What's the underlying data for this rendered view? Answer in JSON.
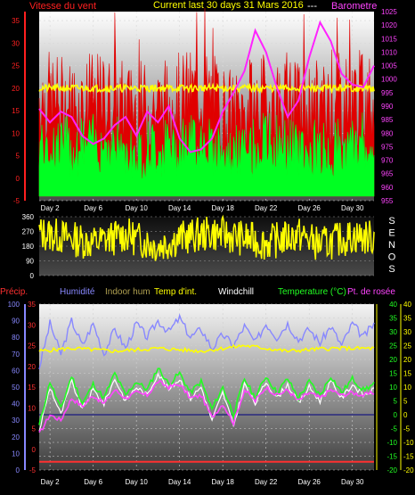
{
  "chart_data": [
    {
      "type": "line",
      "title": "Current last 30 days 31 Mars 2016",
      "left_label": "Vitesse du vent",
      "separator": "---",
      "right_label": "Barometre",
      "colors": {
        "wind_gust": "#e00000",
        "wind_avg": "#00ff22",
        "direction_avg": "#ffff00",
        "barometer": "#ff22ff"
      },
      "y_left_ticks": [
        35,
        30,
        25,
        20,
        15,
        10,
        5,
        0,
        -5
      ],
      "y_left_range": [
        -5,
        37
      ],
      "y_right_ticks": [
        1025,
        1020,
        1015,
        1010,
        1005,
        1000,
        995,
        990,
        985,
        980,
        975,
        970,
        965,
        960,
        955
      ],
      "y_right_range": [
        955,
        1025
      ],
      "x_ticks": [
        "Day 2",
        "Day 6",
        "Day 10",
        "Day 14",
        "Day 18",
        "Day 22",
        "Day 26",
        "Day 30"
      ],
      "x_range": [
        1,
        32
      ],
      "grid": true,
      "series": [
        {
          "key": "barometer",
          "axis": "right",
          "x": [
            1,
            2,
            3,
            4,
            5,
            6,
            7,
            8,
            9,
            10,
            11,
            12,
            13,
            14,
            15,
            16,
            17,
            18,
            19,
            20,
            21,
            22,
            23,
            24,
            25,
            26,
            27,
            28,
            29,
            30,
            31,
            32
          ],
          "y": [
            989,
            984,
            988,
            986,
            979,
            976,
            978,
            983,
            986,
            979,
            988,
            984,
            990,
            978,
            973,
            974,
            978,
            988,
            995,
            1003,
            1018,
            1010,
            997,
            986,
            992,
            1008,
            1021,
            1014,
            1002,
            998,
            997,
            1005
          ]
        },
        {
          "key": "wind_avg_level",
          "axis": "left",
          "x": [
            1,
            4,
            7,
            10,
            13,
            16,
            19,
            22,
            25,
            28,
            31,
            32
          ],
          "y": [
            8,
            7,
            8,
            6,
            7,
            9,
            5,
            8,
            7,
            6,
            8,
            8
          ]
        },
        {
          "key": "wind_gust_level",
          "axis": "left",
          "x": [
            1,
            4,
            7,
            10,
            13,
            16,
            19,
            22,
            25,
            28,
            31,
            32
          ],
          "y": [
            18,
            16,
            17,
            15,
            16,
            19,
            13,
            17,
            15,
            16,
            18,
            17
          ]
        },
        {
          "key": "direction_level",
          "axis": "left",
          "x": [
            1,
            32
          ],
          "y": [
            20,
            20
          ]
        }
      ]
    },
    {
      "type": "area",
      "side_label": "SENOS",
      "y_ticks": [
        360,
        270,
        180,
        90,
        0
      ],
      "y_range": [
        0,
        360
      ],
      "colors": {
        "direction": "#ffff00"
      },
      "series": [
        {
          "key": "wind_direction",
          "x": [
            1,
            3,
            6,
            9,
            12,
            14,
            17,
            19,
            22,
            25,
            27,
            30,
            32
          ],
          "y": [
            260,
            240,
            200,
            250,
            180,
            230,
            260,
            240,
            200,
            250,
            190,
            240,
            230
          ]
        }
      ]
    },
    {
      "type": "line",
      "legend": [
        "Précip.",
        "Humidité",
        "Indoor hum",
        "Temp d'int.",
        "Windchill",
        "Temperature (°C)",
        "Pt. de rosée"
      ],
      "legend_colors": [
        "#ff3030",
        "#8888ff",
        "#b0a050",
        "#ffff00",
        "#ffffff",
        "#22ff22",
        "#ff44ff"
      ],
      "y_hum_ticks": [
        100,
        90,
        80,
        70,
        60,
        50,
        40,
        30,
        20,
        10,
        0
      ],
      "y_precip_ticks": [
        35,
        30,
        25,
        20,
        15,
        10,
        5,
        0,
        -5
      ],
      "y_temp_ticks": [
        40,
        35,
        30,
        25,
        20,
        15,
        10,
        5,
        0,
        -5,
        -10,
        -15,
        -20
      ],
      "y_temp_range": [
        -20,
        40
      ],
      "x_ticks": [
        "Day 2",
        "Day 6",
        "Day 10",
        "Day 14",
        "Day 18",
        "Day 22",
        "Day 26",
        "Day 30"
      ],
      "x_range": [
        1,
        32
      ],
      "grid": true,
      "series": [
        {
          "key": "humidity",
          "axis": "temp",
          "x": [
            1,
            2,
            3,
            4,
            5,
            6,
            7,
            8,
            9,
            10,
            11,
            12,
            13,
            14,
            15,
            16,
            17,
            18,
            19,
            20,
            21,
            22,
            23,
            24,
            25,
            26,
            27,
            28,
            29,
            30,
            31,
            32
          ],
          "y": [
            17,
            33,
            22,
            34,
            25,
            33,
            22,
            31,
            24,
            33,
            28,
            34,
            30,
            35,
            28,
            31,
            24,
            29,
            25,
            32,
            26,
            33,
            28,
            33,
            27,
            31,
            26,
            32,
            25,
            33,
            28,
            33
          ]
        },
        {
          "key": "indoor_temp",
          "axis": "temp",
          "x": [
            1,
            4,
            8,
            12,
            16,
            20,
            24,
            28,
            32
          ],
          "y": [
            23,
            24,
            23,
            24,
            23,
            25,
            23,
            24,
            24
          ]
        },
        {
          "key": "temperature",
          "axis": "temp",
          "x": [
            1,
            2,
            3,
            4,
            5,
            6,
            7,
            8,
            9,
            10,
            11,
            12,
            13,
            14,
            15,
            16,
            17,
            18,
            19,
            20,
            21,
            22,
            23,
            24,
            25,
            26,
            27,
            28,
            29,
            30,
            31,
            32
          ],
          "y": [
            -4,
            12,
            2,
            14,
            4,
            11,
            6,
            15,
            7,
            12,
            9,
            17,
            11,
            15,
            8,
            12,
            2,
            10,
            0,
            13,
            6,
            14,
            8,
            13,
            6,
            12,
            7,
            14,
            8,
            13,
            9,
            11
          ]
        },
        {
          "key": "windchill",
          "axis": "temp",
          "x": [
            1,
            2,
            3,
            4,
            5,
            6,
            7,
            8,
            9,
            10,
            11,
            12,
            13,
            14,
            15,
            16,
            17,
            18,
            19,
            20,
            21,
            22,
            23,
            24,
            25,
            26,
            27,
            28,
            29,
            30,
            31,
            32
          ],
          "y": [
            -6,
            10,
            0,
            12,
            2,
            9,
            4,
            13,
            5,
            10,
            7,
            15,
            9,
            13,
            6,
            10,
            -2,
            8,
            -4,
            11,
            4,
            12,
            6,
            11,
            4,
            10,
            5,
            12,
            6,
            11,
            7,
            9
          ]
        },
        {
          "key": "dew_point",
          "axis": "temp",
          "x": [
            1,
            2,
            3,
            4,
            5,
            6,
            7,
            8,
            9,
            10,
            11,
            12,
            13,
            14,
            15,
            16,
            17,
            18,
            19,
            20,
            21,
            22,
            23,
            24,
            25,
            26,
            27,
            28,
            29,
            30,
            31,
            32
          ],
          "y": [
            -7,
            0,
            -2,
            6,
            3,
            7,
            4,
            9,
            6,
            8,
            7,
            12,
            10,
            11,
            6,
            7,
            -1,
            4,
            -3,
            9,
            5,
            10,
            7,
            9,
            5,
            8,
            6,
            9,
            7,
            8,
            7,
            8
          ]
        },
        {
          "key": "precip_accum",
          "axis": "precip",
          "x": [
            1,
            2,
            4,
            8,
            9,
            10,
            12,
            14,
            16,
            17,
            19,
            21,
            23,
            25,
            27,
            29,
            30,
            31,
            32
          ],
          "y": [
            0,
            0,
            0,
            0,
            0,
            0,
            0,
            0,
            0,
            0,
            0,
            0,
            0,
            0,
            0,
            0,
            0,
            0,
            0
          ]
        }
      ]
    }
  ]
}
